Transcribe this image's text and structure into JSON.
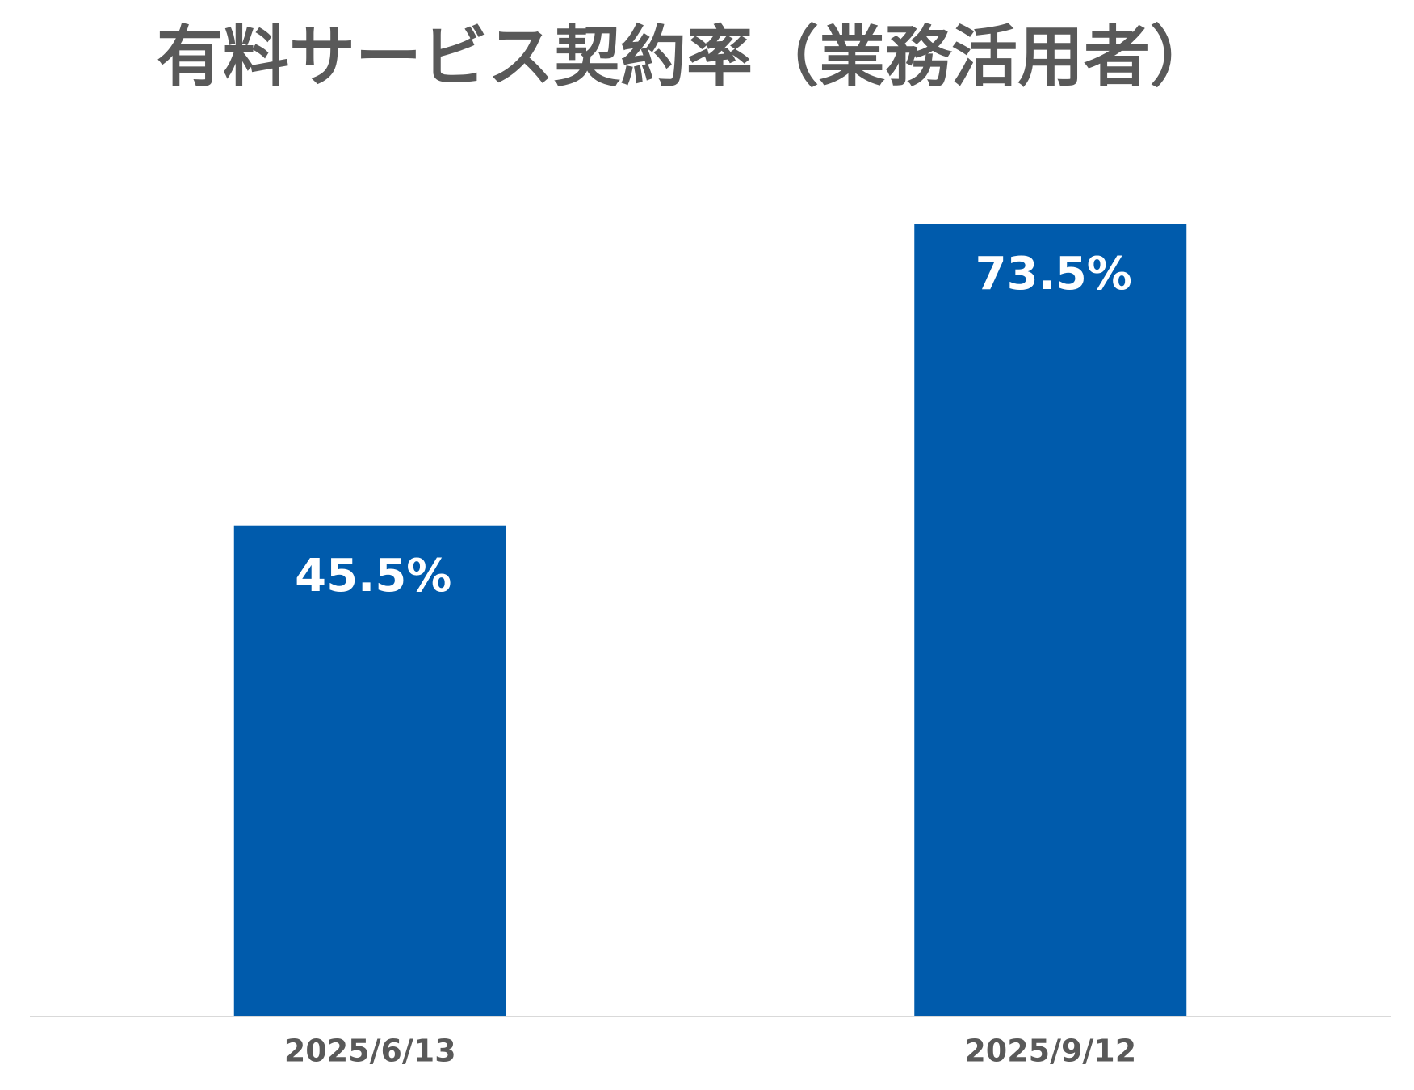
{
  "chart_data": {
    "type": "bar",
    "title": "有料サービス契約率（業務活用者）",
    "categories": [
      "2025/6/13",
      "2025/9/12"
    ],
    "values": [
      45.5,
      73.5
    ],
    "value_labels": [
      "45.5%",
      "73.5%"
    ],
    "color": "#005bac"
  }
}
